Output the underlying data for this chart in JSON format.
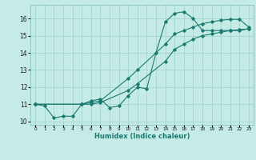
{
  "title": "",
  "xlabel": "Humidex (Indice chaleur)",
  "xlim": [
    -0.5,
    23.5
  ],
  "ylim": [
    9.8,
    16.8
  ],
  "xticks": [
    0,
    1,
    2,
    3,
    4,
    5,
    6,
    7,
    8,
    9,
    10,
    11,
    12,
    13,
    14,
    15,
    16,
    17,
    18,
    19,
    20,
    21,
    22,
    23
  ],
  "yticks": [
    10,
    11,
    12,
    13,
    14,
    15,
    16
  ],
  "background_color": "#c5ebe6",
  "grid_color": "#a8d8d2",
  "line_color": "#1a7a6e",
  "line1_x": [
    0,
    1,
    2,
    3,
    4,
    5,
    6,
    7,
    8,
    9,
    10,
    11,
    12,
    13,
    14,
    15,
    16,
    17,
    18,
    19,
    20,
    21,
    22,
    23
  ],
  "line1_y": [
    11.0,
    10.9,
    10.2,
    10.3,
    10.3,
    11.0,
    11.2,
    11.3,
    10.8,
    10.9,
    11.5,
    12.0,
    11.9,
    14.0,
    15.8,
    16.3,
    16.4,
    16.0,
    15.3,
    15.3,
    15.3,
    15.3,
    15.3,
    15.4
  ],
  "line2_x": [
    0,
    5,
    6,
    7,
    10,
    11,
    14,
    15,
    16,
    17,
    18,
    19,
    20,
    21,
    22,
    23
  ],
  "line2_y": [
    11.0,
    11.0,
    11.1,
    11.2,
    12.5,
    13.0,
    14.5,
    15.1,
    15.3,
    15.5,
    15.7,
    15.8,
    15.9,
    15.95,
    15.95,
    15.5
  ],
  "line3_x": [
    0,
    5,
    6,
    7,
    10,
    11,
    14,
    15,
    16,
    17,
    18,
    19,
    20,
    21,
    22,
    23
  ],
  "line3_y": [
    11.0,
    11.0,
    11.0,
    11.1,
    11.8,
    12.2,
    13.5,
    14.2,
    14.5,
    14.8,
    15.0,
    15.1,
    15.2,
    15.3,
    15.35,
    15.4
  ]
}
